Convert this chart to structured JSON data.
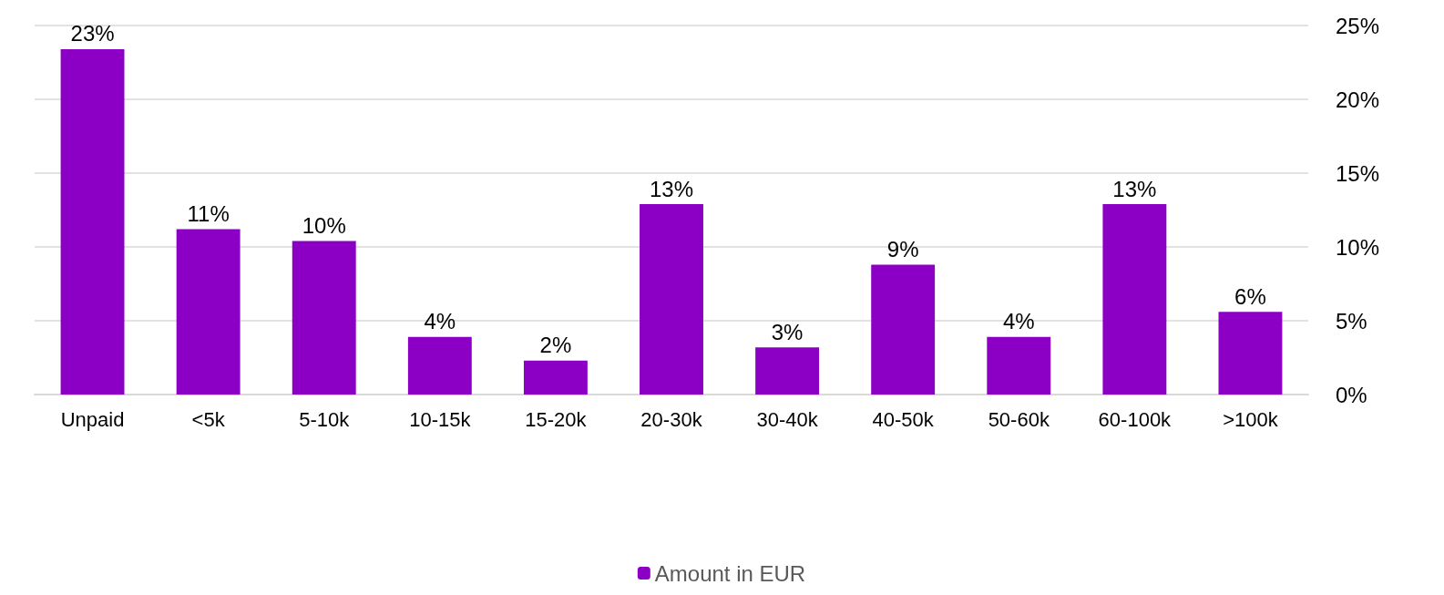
{
  "chart_data": {
    "type": "bar",
    "categories": [
      "Unpaid",
      "<5k",
      "5-10k",
      "10-15k",
      "15-20k",
      "20-30k",
      "30-40k",
      "40-50k",
      "50-60k",
      "60-100k",
      ">100k"
    ],
    "series": [
      {
        "name": "Amount in EUR",
        "color": "#8b00c4",
        "values": [
          23.4,
          11.2,
          10.4,
          3.9,
          2.3,
          12.9,
          3.2,
          8.8,
          3.9,
          12.9,
          5.6
        ],
        "value_labels": [
          "23%",
          "11%",
          "10%",
          "4%",
          "2%",
          "13%",
          "3%",
          "9%",
          "4%",
          "13%",
          "6%"
        ]
      }
    ],
    "ylim": [
      0,
      25
    ],
    "yticks": [
      {
        "value": 0,
        "label": "0%"
      },
      {
        "value": 5,
        "label": "5%"
      },
      {
        "value": 10,
        "label": "10%"
      },
      {
        "value": 15,
        "label": "15%"
      },
      {
        "value": 20,
        "label": "20%"
      },
      {
        "value": 25,
        "label": "25%"
      }
    ],
    "grid": "y",
    "legend": "bottom"
  }
}
